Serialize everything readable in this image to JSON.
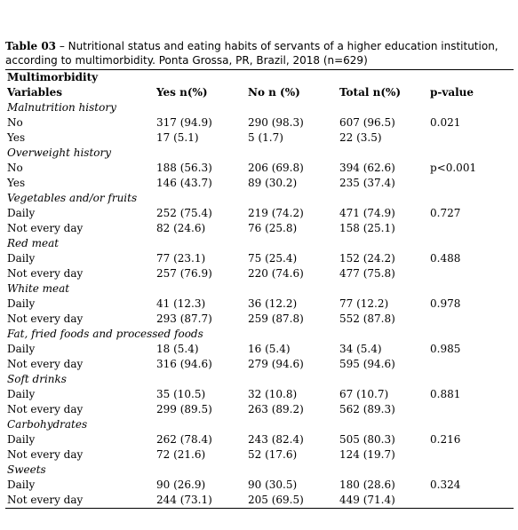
{
  "caption": {
    "label": "Table 03",
    "text": "– Nutritional status and eating habits of servants of a higher education institution, according to multimorbidity. Ponta Grossa, PR, Brazil, 2018 (n=629)"
  },
  "table": {
    "group": "Multimorbidity",
    "headers": [
      "Variables",
      "Yes n(%)",
      "No n (%)",
      "Total n(%)",
      "p-value"
    ],
    "sections": [
      {
        "title": "Malnutrition history",
        "rows": [
          [
            "No",
            "317 (94.9)",
            "290 (98.3)",
            "607 (96.5)",
            "0.021"
          ],
          [
            "Yes",
            "17 (5.1)",
            "5 (1.7)",
            "22 (3.5)"
          ]
        ]
      },
      {
        "title": "Overweight history",
        "rows": [
          [
            "No",
            "188 (56.3)",
            "206 (69.8)",
            "394 (62.6)",
            "p<0.001"
          ],
          [
            "Yes",
            "146 (43.7)",
            "89 (30.2)",
            "235 (37.4)"
          ]
        ]
      },
      {
        "title": "Vegetables and/or fruits",
        "rows": [
          [
            "Daily",
            "252 (75.4)",
            "219 (74.2)",
            "471 (74.9)",
            "0.727"
          ],
          [
            "Not every day",
            "82 (24.6)",
            "76 (25.8)",
            "158 (25.1)"
          ]
        ]
      },
      {
        "title": "Red meat",
        "rows": [
          [
            "Daily",
            "77 (23.1)",
            "75 (25.4)",
            "152 (24.2)",
            "0.488"
          ],
          [
            "Not every day",
            "257 (76.9)",
            "220 (74.6)",
            "477 (75.8)"
          ]
        ]
      },
      {
        "title": "White meat",
        "rows": [
          [
            "Daily",
            "41 (12.3)",
            "36 (12.2)",
            "77 (12.2)",
            "0.978"
          ],
          [
            "Not every day",
            "293 (87.7)",
            "259 (87.8)",
            "552 (87.8)"
          ]
        ]
      },
      {
        "title": "Fat, fried foods and processed foods",
        "rows": [
          [
            "Daily",
            "18 (5.4)",
            "16 (5.4)",
            "34 (5.4)",
            "0.985"
          ],
          [
            "Not every day",
            "316 (94.6)",
            "279 (94.6)",
            "595 (94.6)"
          ]
        ]
      },
      {
        "title": "Soft drinks",
        "rows": [
          [
            "Daily",
            "35 (10.5)",
            "32 (10.8)",
            "67 (10.7)",
            "0.881"
          ],
          [
            "Not every day",
            "299 (89.5)",
            "263 (89.2)",
            "562 (89.3)"
          ]
        ]
      },
      {
        "title": "Carbohydrates",
        "rows": [
          [
            "Daily",
            "262 (78.4)",
            "243 (82.4)",
            "505 (80.3)",
            "0.216"
          ],
          [
            "Not every day",
            "72 (21.6)",
            "52 (17.6)",
            "124 (19.7)"
          ]
        ]
      },
      {
        "title": "Sweets",
        "rows": [
          [
            "Daily",
            "90 (26.9)",
            "90 (30.5)",
            "180 (28.6)",
            "0.324"
          ],
          [
            "Not every day",
            "244 (73.1)",
            "205 (69.5)",
            "449 (71.4)"
          ]
        ]
      }
    ]
  }
}
